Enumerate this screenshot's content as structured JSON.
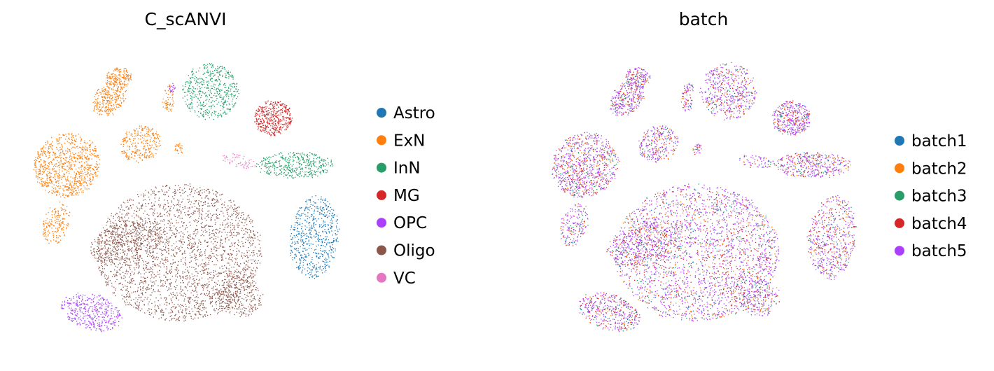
{
  "chart_data": [
    {
      "type": "scatter",
      "title": "C_scANVI",
      "axes": "off",
      "grid": false,
      "legend_position": "right",
      "legend": [
        {
          "name": "Astro",
          "color": "#1f77b4"
        },
        {
          "name": "ExN",
          "color": "#ff7f0e"
        },
        {
          "name": "InN",
          "color": "#279e68"
        },
        {
          "name": "MG",
          "color": "#d62728"
        },
        {
          "name": "OPC",
          "color": "#aa40fc"
        },
        {
          "name": "Oligo",
          "color": "#8c564b"
        },
        {
          "name": "VC",
          "color": "#e377c2"
        }
      ]
    },
    {
      "type": "scatter",
      "title": "batch",
      "axes": "off",
      "grid": false,
      "legend_position": "right",
      "legend": [
        {
          "name": "batch1",
          "color": "#1f77b4"
        },
        {
          "name": "batch2",
          "color": "#ff7f0e"
        },
        {
          "name": "batch3",
          "color": "#279e68"
        },
        {
          "name": "batch4",
          "color": "#d62728"
        },
        {
          "name": "batch5",
          "color": "#aa40fc"
        }
      ]
    }
  ]
}
